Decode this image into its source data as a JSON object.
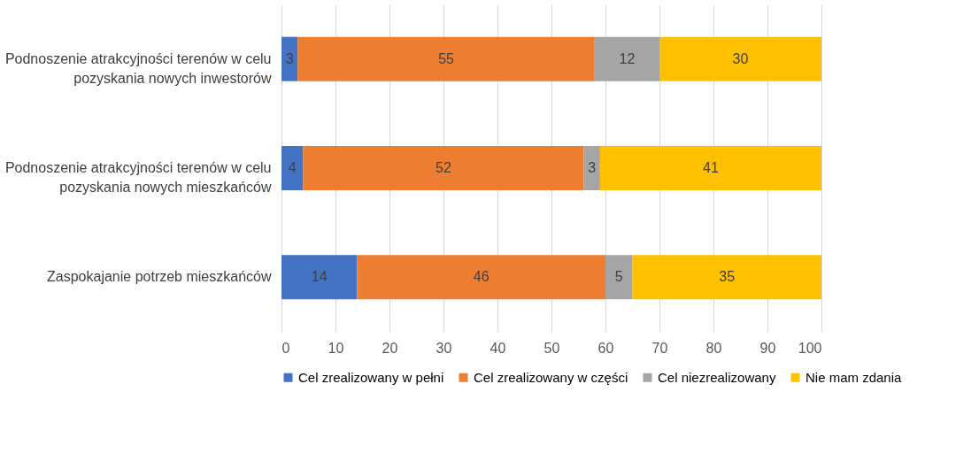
{
  "chart_data": {
    "type": "bar",
    "orientation": "horizontal",
    "stacked": true,
    "categories": [
      "Podnoszenie atrakcyjności terenów w celu pozyskania nowych inwestorów",
      "Podnoszenie atrakcyjności terenów w celu pozyskania nowych mieszkańców",
      "Zaspokajanie potrzeb mieszkańców"
    ],
    "series": [
      {
        "name": "Cel zrealizowany w pełni",
        "color": "#4472c4",
        "values": [
          3,
          4,
          14
        ]
      },
      {
        "name": "Cel zrealizowany w części",
        "color": "#ed7d31",
        "values": [
          55,
          52,
          46
        ]
      },
      {
        "name": "Cel niezrealizowany",
        "color": "#a5a5a5",
        "values": [
          12,
          3,
          5
        ]
      },
      {
        "name": "Nie mam zdania",
        "color": "#ffc000",
        "values": [
          30,
          41,
          35
        ]
      }
    ],
    "xlim": [
      0,
      100
    ],
    "xticks": [
      0,
      10,
      20,
      30,
      40,
      50,
      60,
      70,
      80,
      90,
      100
    ],
    "grid": "x",
    "legend": "bottom",
    "data_labels": true
  }
}
